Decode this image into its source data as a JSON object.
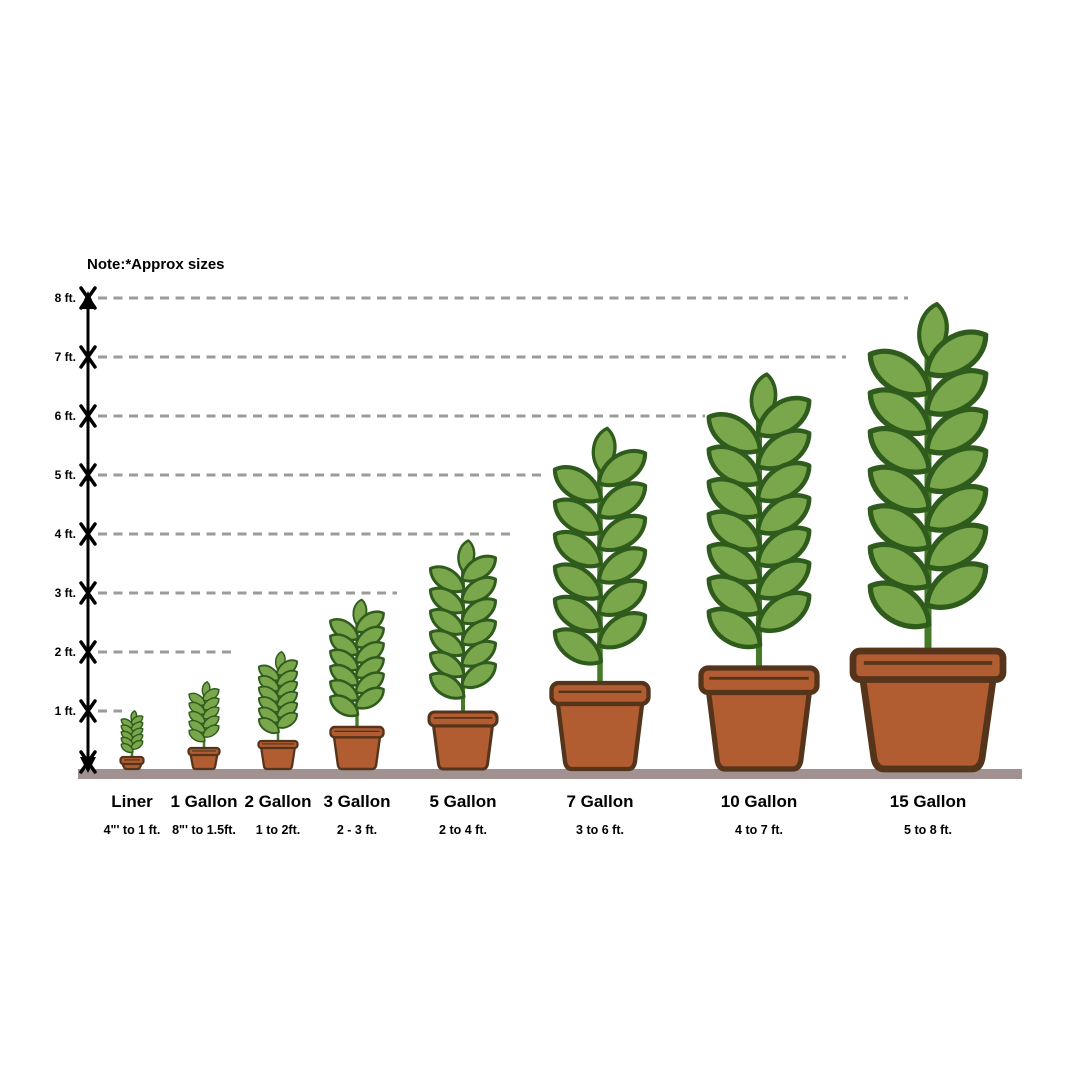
{
  "chart_data": {
    "type": "bar",
    "variant": "pictorial-plant-container-size-chart",
    "note": "Note:*Approx sizes",
    "categories": [
      "Liner",
      "1 Gallon",
      "2 Gallon",
      "3 Gallon",
      "5 Gallon",
      "7 Gallon",
      "10 Gallon",
      "15 Gallon"
    ],
    "size_ranges": [
      "4\"' to 1 ft.",
      "8\"' to 1.5ft.",
      "1 to 2ft.",
      "2 - 3 ft.",
      "2 to 4 ft.",
      "3 to 6 ft.",
      "4 to 7 ft.",
      "5 to 8 ft."
    ],
    "max_height_ft": [
      1,
      1.5,
      2,
      3,
      4,
      6,
      7,
      8
    ],
    "y_tick_labels": [
      "1 ft.",
      "2 ft.",
      "3 ft.",
      "4 ft.",
      "5 ft.",
      "6 ft.",
      "7 ft.",
      "8 ft."
    ],
    "ylabel": "",
    "xlabel": "",
    "ylim": [
      0,
      8
    ],
    "grid": "dashed horizontal guide lines, one per foot",
    "legend": "none"
  },
  "colors": {
    "leaf": "#7aa64c",
    "leaf_outline": "#2f5c1d",
    "stem": "#447a28",
    "pot": "#b15c31",
    "pot_outline": "#54341b",
    "ground": "#a19190",
    "dash": "#9b9b9b",
    "axis": "#000000",
    "text": "#000000"
  }
}
